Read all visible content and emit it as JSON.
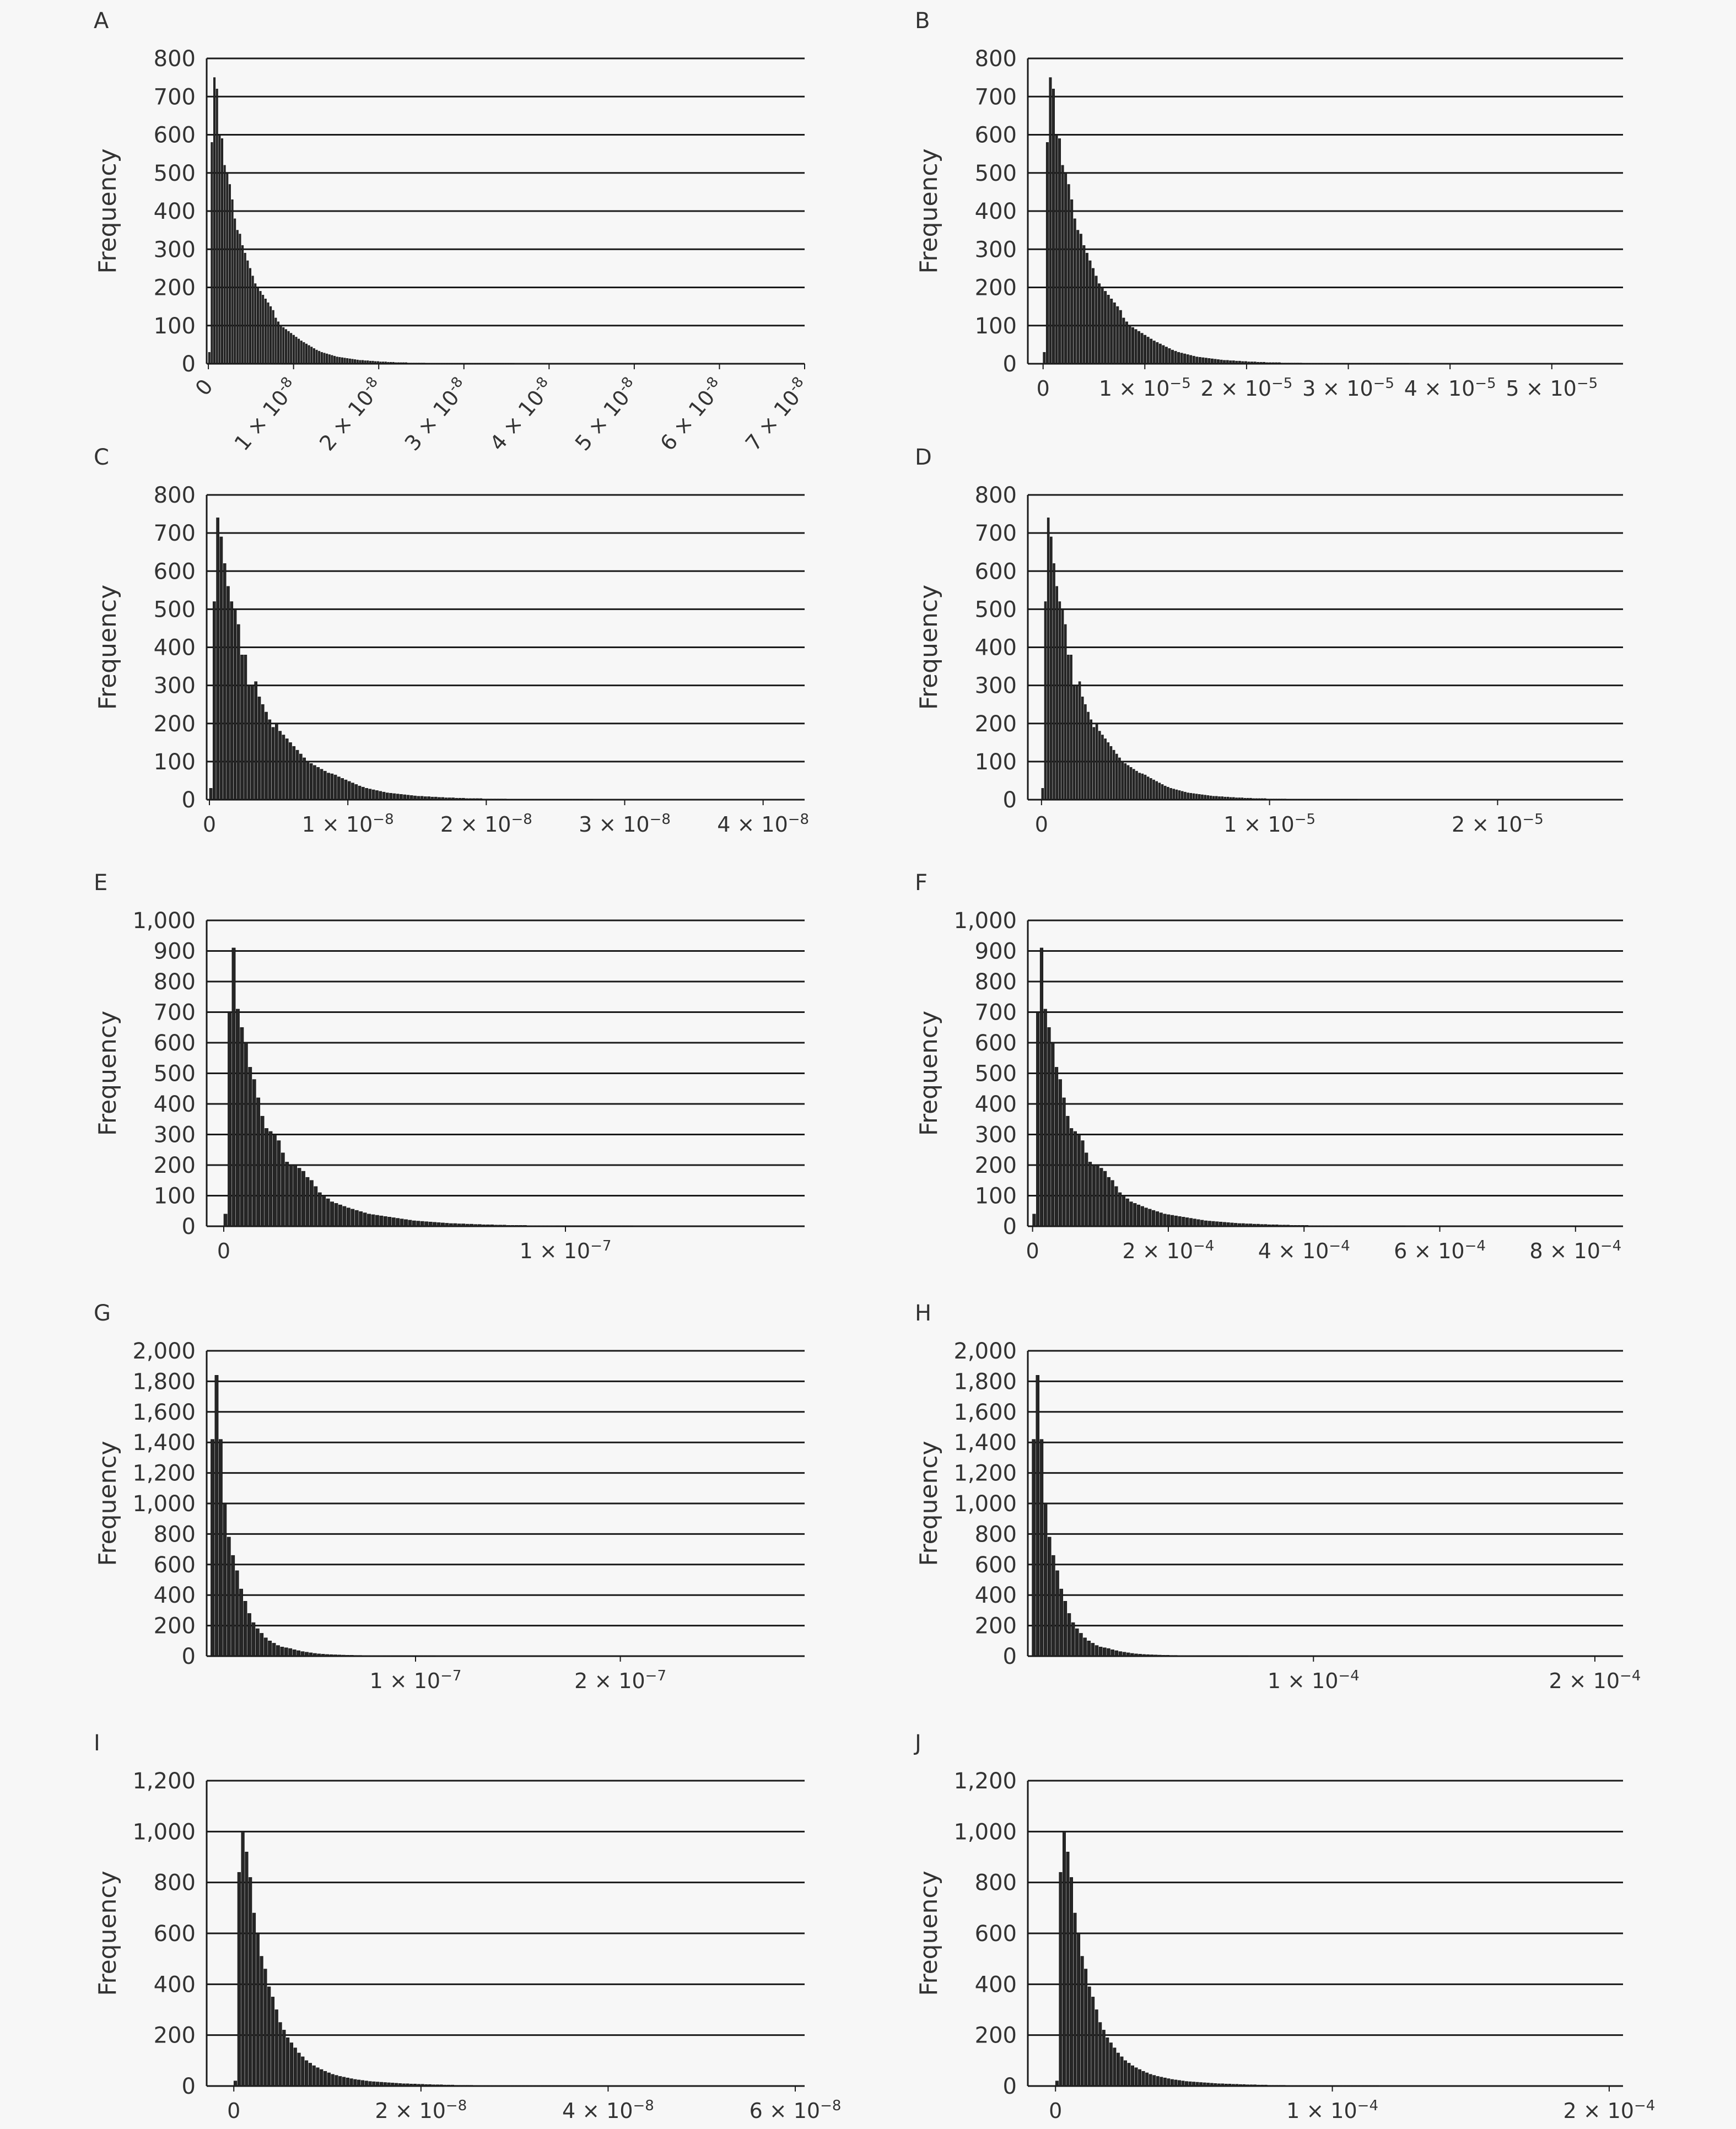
{
  "chart_data": [
    {
      "panel": "A",
      "type": "bar",
      "ylabel": "Frequency",
      "ylim": [
        0,
        800
      ],
      "yticks": [
        "0",
        "100",
        "200",
        "300",
        "400",
        "500",
        "600",
        "700",
        "800"
      ],
      "xlim": [
        -2e-10,
        7e-08
      ],
      "xlabels_rotated": true,
      "xticks": [
        {
          "value": 0,
          "mantissa": "0",
          "exp": ""
        },
        {
          "value": 1e-08,
          "mantissa": "1 × 10",
          "exp": "-8"
        },
        {
          "value": 2e-08,
          "mantissa": "2 × 10",
          "exp": "-8"
        },
        {
          "value": 3e-08,
          "mantissa": "3 × 10",
          "exp": "-8"
        },
        {
          "value": 4e-08,
          "mantissa": "4 × 10",
          "exp": "-8"
        },
        {
          "value": 5e-08,
          "mantissa": "5 × 10",
          "exp": "-8"
        },
        {
          "value": 6e-08,
          "mantissa": "6 × 10",
          "exp": "-8"
        },
        {
          "value": 7e-08,
          "mantissa": "7 × 10",
          "exp": "-8"
        }
      ],
      "bin_width": 3e-10,
      "frequencies": [
        30,
        580,
        750,
        720,
        600,
        590,
        520,
        500,
        470,
        430,
        380,
        350,
        340,
        310,
        290,
        270,
        250,
        230,
        210,
        200,
        190,
        180,
        170,
        160,
        150,
        140,
        120,
        110,
        100,
        95,
        90,
        85,
        80,
        75,
        70,
        65,
        60,
        56,
        52,
        48,
        44,
        40,
        36,
        33,
        30,
        28,
        26,
        24,
        22,
        20,
        18,
        17,
        16,
        15,
        14,
        13,
        12,
        11,
        10,
        9,
        9,
        8,
        8,
        7,
        7,
        6,
        6,
        5,
        5,
        5,
        4,
        4,
        4,
        3,
        3,
        3,
        3,
        3,
        2,
        2,
        2,
        2,
        2,
        2,
        2,
        1,
        1,
        1,
        1,
        1,
        1,
        1,
        1,
        1,
        1,
        1,
        1,
        1,
        1,
        1,
        1,
        1,
        1,
        1,
        1,
        1,
        1,
        1,
        1,
        1,
        1,
        1,
        1,
        1,
        1,
        1,
        1,
        1,
        1,
        1
      ]
    },
    {
      "panel": "B",
      "type": "bar",
      "ylabel": "Frequency",
      "ylim": [
        0,
        800
      ],
      "yticks": [
        "0",
        "100",
        "200",
        "300",
        "400",
        "500",
        "600",
        "700",
        "800"
      ],
      "xlim": [
        -1.5e-06,
        5.7e-05
      ],
      "xlabels_rotated": false,
      "xticks": [
        {
          "value": 0,
          "mantissa": "0",
          "exp": ""
        },
        {
          "value": 1e-05,
          "mantissa": "1 × 10",
          "exp": "−5"
        },
        {
          "value": 2e-05,
          "mantissa": "2 × 10",
          "exp": "−5"
        },
        {
          "value": 3e-05,
          "mantissa": "3 × 10",
          "exp": "−5"
        },
        {
          "value": 4e-05,
          "mantissa": "4 × 10",
          "exp": "−5"
        },
        {
          "value": 5e-05,
          "mantissa": "5 × 10",
          "exp": "−5"
        }
      ],
      "bin_width": 3e-07,
      "frequencies": [
        30,
        580,
        750,
        720,
        600,
        590,
        520,
        500,
        470,
        430,
        380,
        350,
        340,
        310,
        290,
        270,
        250,
        230,
        210,
        200,
        190,
        180,
        170,
        160,
        150,
        140,
        120,
        110,
        100,
        95,
        90,
        85,
        80,
        75,
        70,
        65,
        60,
        56,
        52,
        48,
        44,
        40,
        36,
        33,
        30,
        28,
        26,
        24,
        22,
        20,
        18,
        17,
        16,
        15,
        14,
        13,
        12,
        11,
        10,
        9,
        9,
        8,
        8,
        7,
        7,
        6,
        6,
        5,
        5,
        5,
        4,
        4,
        4,
        3,
        3,
        3,
        3,
        3,
        2,
        2,
        2,
        2,
        2,
        2,
        2,
        1,
        1,
        1,
        1,
        1,
        1,
        1,
        1,
        1,
        1,
        1,
        1,
        1,
        1,
        1,
        1,
        1,
        1,
        1,
        1,
        1,
        1,
        1,
        1,
        1,
        1,
        1,
        1,
        1,
        1,
        1,
        1,
        1,
        1,
        1
      ]
    },
    {
      "panel": "C",
      "type": "bar",
      "ylabel": "Frequency",
      "ylim": [
        0,
        800
      ],
      "yticks": [
        "0",
        "100",
        "200",
        "300",
        "400",
        "500",
        "600",
        "700",
        "800"
      ],
      "xlim": [
        -2e-10,
        4.3e-08
      ],
      "xlabels_rotated": false,
      "xticks": [
        {
          "value": 0,
          "mantissa": "0",
          "exp": ""
        },
        {
          "value": 1e-08,
          "mantissa": "1 × 10",
          "exp": "−8"
        },
        {
          "value": 2e-08,
          "mantissa": "2 × 10",
          "exp": "−8"
        },
        {
          "value": 3e-08,
          "mantissa": "3 × 10",
          "exp": "−8"
        },
        {
          "value": 4e-08,
          "mantissa": "4 × 10",
          "exp": "−8"
        }
      ],
      "bin_width": 2.5e-10,
      "frequencies": [
        30,
        520,
        740,
        690,
        620,
        560,
        520,
        500,
        460,
        380,
        380,
        300,
        300,
        310,
        270,
        250,
        230,
        210,
        190,
        200,
        180,
        170,
        160,
        150,
        140,
        130,
        120,
        110,
        100,
        95,
        90,
        85,
        80,
        75,
        70,
        68,
        65,
        60,
        56,
        52,
        48,
        44,
        40,
        36,
        33,
        30,
        28,
        26,
        24,
        22,
        20,
        18,
        17,
        16,
        15,
        14,
        13,
        12,
        11,
        10,
        9,
        9,
        8,
        8,
        7,
        7,
        6,
        6,
        5,
        5,
        5,
        4,
        4,
        4,
        3,
        3,
        3,
        3,
        3,
        2,
        2,
        2,
        2,
        2,
        2,
        2,
        1,
        1,
        1,
        1,
        1,
        1,
        1,
        1,
        1,
        1,
        1,
        1,
        1,
        1,
        1,
        1,
        1,
        1,
        1,
        1,
        1,
        1,
        1,
        1,
        1
      ]
    },
    {
      "panel": "D",
      "type": "bar",
      "ylabel": "Frequency",
      "ylim": [
        0,
        800
      ],
      "yticks": [
        "0",
        "100",
        "200",
        "300",
        "400",
        "500",
        "600",
        "700",
        "800"
      ],
      "xlim": [
        -6e-07,
        2.55e-05
      ],
      "xlabels_rotated": false,
      "xticks": [
        {
          "value": 0,
          "mantissa": "0",
          "exp": ""
        },
        {
          "value": 1e-05,
          "mantissa": "1 × 10",
          "exp": "−5"
        },
        {
          "value": 2e-05,
          "mantissa": "2 × 10",
          "exp": "−5"
        }
      ],
      "bin_width": 1.25e-07,
      "frequencies": [
        30,
        520,
        740,
        690,
        620,
        560,
        520,
        500,
        460,
        380,
        380,
        300,
        300,
        310,
        270,
        250,
        230,
        210,
        190,
        200,
        180,
        170,
        160,
        150,
        140,
        130,
        120,
        110,
        100,
        95,
        90,
        85,
        80,
        75,
        70,
        68,
        65,
        60,
        56,
        52,
        48,
        44,
        40,
        36,
        33,
        30,
        28,
        26,
        24,
        22,
        20,
        18,
        17,
        16,
        15,
        14,
        13,
        12,
        11,
        10,
        9,
        9,
        8,
        8,
        7,
        7,
        6,
        6,
        5,
        5,
        5,
        4,
        4,
        4,
        3,
        3,
        3,
        3,
        3,
        2,
        2,
        2,
        2,
        2,
        2,
        2,
        1,
        1,
        1,
        1,
        1,
        1,
        1,
        1,
        1,
        1,
        1,
        1,
        1,
        1,
        1,
        1,
        1,
        1,
        1,
        1,
        1,
        1,
        1,
        1,
        1
      ]
    },
    {
      "panel": "E",
      "type": "bar",
      "ylabel": "Frequency",
      "ylim": [
        0,
        1000
      ],
      "yticks": [
        "0",
        "100",
        "200",
        "300",
        "400",
        "500",
        "600",
        "700",
        "800",
        "900",
        "1,000"
      ],
      "xlim": [
        -5e-09,
        1.7e-07
      ],
      "xlabels_rotated": false,
      "xticks": [
        {
          "value": 0,
          "mantissa": "0",
          "exp": ""
        },
        {
          "value": 1e-07,
          "mantissa": "1 × 10",
          "exp": "−7"
        }
      ],
      "bin_width": 1.2e-09,
      "frequencies": [
        40,
        700,
        910,
        710,
        650,
        600,
        520,
        480,
        420,
        360,
        320,
        310,
        300,
        280,
        240,
        210,
        200,
        200,
        190,
        180,
        160,
        150,
        130,
        110,
        100,
        90,
        80,
        75,
        70,
        65,
        60,
        56,
        52,
        48,
        44,
        40,
        38,
        36,
        34,
        32,
        30,
        28,
        26,
        24,
        22,
        20,
        18,
        17,
        16,
        15,
        14,
        13,
        12,
        11,
        10,
        9,
        9,
        8,
        8,
        7,
        7,
        6,
        6,
        5,
        5,
        5,
        4,
        4,
        4,
        3,
        3,
        3,
        3,
        3,
        2,
        2,
        2,
        2,
        2,
        2,
        2,
        1,
        1,
        1,
        1,
        1,
        1,
        1,
        1,
        1,
        1,
        1,
        1,
        1,
        1,
        1,
        1,
        1,
        1,
        1
      ]
    },
    {
      "panel": "F",
      "type": "bar",
      "ylabel": "Frequency",
      "ylim": [
        0,
        1000
      ],
      "yticks": [
        "0",
        "100",
        "200",
        "300",
        "400",
        "500",
        "600",
        "700",
        "800",
        "900",
        "1,000"
      ],
      "xlim": [
        -7e-06,
        0.00087
      ],
      "xlabels_rotated": false,
      "xticks": [
        {
          "value": 0,
          "mantissa": "0",
          "exp": ""
        },
        {
          "value": 0.0002,
          "mantissa": "2 × 10",
          "exp": "−4"
        },
        {
          "value": 0.0004,
          "mantissa": "4 × 10",
          "exp": "−4"
        },
        {
          "value": 0.0006,
          "mantissa": "6 × 10",
          "exp": "−4"
        },
        {
          "value": 0.0008,
          "mantissa": "8 × 10",
          "exp": "−4"
        }
      ],
      "bin_width": 5.5e-06,
      "frequencies": [
        40,
        700,
        910,
        710,
        650,
        600,
        520,
        480,
        420,
        360,
        320,
        310,
        300,
        280,
        240,
        210,
        200,
        200,
        190,
        180,
        160,
        150,
        130,
        110,
        100,
        90,
        80,
        75,
        70,
        65,
        60,
        56,
        52,
        48,
        44,
        40,
        38,
        36,
        34,
        32,
        30,
        28,
        26,
        24,
        22,
        20,
        18,
        17,
        16,
        15,
        14,
        13,
        12,
        11,
        10,
        9,
        9,
        8,
        8,
        7,
        7,
        6,
        6,
        5,
        5,
        5,
        4,
        4,
        4,
        3,
        3,
        3,
        3,
        3,
        2,
        2,
        2,
        2,
        2,
        2,
        2,
        1,
        1,
        1,
        1,
        1,
        1,
        1,
        1,
        1,
        1,
        1,
        1,
        1,
        1,
        1,
        1,
        1,
        1,
        1
      ]
    },
    {
      "panel": "G",
      "type": "bar",
      "ylabel": "Frequency",
      "ylim": [
        0,
        2000
      ],
      "yticks": [
        "0",
        "200",
        "400",
        "600",
        "800",
        "1,000",
        "1,200",
        "1,400",
        "1,600",
        "1,800",
        "2,000"
      ],
      "xlim": [
        -2e-09,
        2.9e-07
      ],
      "xlabels_rotated": false,
      "xticks": [
        {
          "value": 1e-07,
          "mantissa": "1 × 10",
          "exp": "−7"
        },
        {
          "value": 2e-07,
          "mantissa": "2 × 10",
          "exp": "−7"
        }
      ],
      "bin_width": 2e-09,
      "frequencies": [
        1420,
        1840,
        1420,
        1000,
        780,
        660,
        560,
        440,
        360,
        280,
        220,
        180,
        150,
        120,
        100,
        85,
        70,
        60,
        55,
        50,
        42,
        36,
        30,
        26,
        22,
        18,
        15,
        13,
        11,
        10,
        9,
        8,
        7,
        6,
        6,
        5,
        5,
        4,
        4,
        3,
        3,
        3,
        2,
        2,
        2,
        2,
        2,
        1,
        1,
        1,
        1,
        1,
        1,
        1,
        1
      ]
    },
    {
      "panel": "H",
      "type": "bar",
      "ylabel": "Frequency",
      "ylim": [
        0,
        2000
      ],
      "yticks": [
        "0",
        "200",
        "400",
        "600",
        "800",
        "1,000",
        "1,200",
        "1,400",
        "1,600",
        "1,800",
        "2,000"
      ],
      "xlim": [
        -1.5e-06,
        0.00021
      ],
      "xlabels_rotated": false,
      "xticks": [
        {
          "value": 0.0001,
          "mantissa": "1 × 10",
          "exp": "−4"
        },
        {
          "value": 0.0002,
          "mantissa": "2 × 10",
          "exp": "−4"
        }
      ],
      "bin_width": 1.4e-06,
      "frequencies": [
        1420,
        1840,
        1420,
        1000,
        780,
        660,
        560,
        440,
        360,
        280,
        220,
        180,
        150,
        120,
        100,
        85,
        70,
        60,
        55,
        50,
        42,
        36,
        30,
        26,
        22,
        18,
        15,
        13,
        11,
        10,
        9,
        8,
        7,
        6,
        6,
        5,
        5,
        4,
        4,
        3,
        3,
        3,
        2,
        2,
        2,
        2,
        2,
        1,
        1,
        1,
        1,
        1,
        1,
        1,
        1
      ]
    },
    {
      "panel": "I",
      "type": "bar",
      "ylabel": "Frequency",
      "ylim": [
        0,
        1200
      ],
      "yticks": [
        "0",
        "200",
        "400",
        "600",
        "800",
        "1,000",
        "1,200"
      ],
      "xlim": [
        -2.9e-09,
        6.1e-08
      ],
      "xlabels_rotated": false,
      "xticks": [
        {
          "value": 0,
          "mantissa": "0",
          "exp": ""
        },
        {
          "value": 2e-08,
          "mantissa": "2 × 10",
          "exp": "−8"
        },
        {
          "value": 4e-08,
          "mantissa": "4 × 10",
          "exp": "−8"
        },
        {
          "value": 6e-08,
          "mantissa": "6 × 10",
          "exp": "−8"
        }
      ],
      "bin_width": 4e-10,
      "frequencies": [
        20,
        840,
        1000,
        920,
        820,
        680,
        600,
        510,
        460,
        390,
        350,
        300,
        250,
        220,
        190,
        170,
        150,
        130,
        115,
        100,
        90,
        80,
        72,
        65,
        58,
        52,
        46,
        42,
        38,
        35,
        32,
        29,
        26,
        24,
        22,
        20,
        18,
        17,
        16,
        15,
        14,
        13,
        12,
        11,
        10,
        9,
        9,
        8,
        8,
        7,
        7,
        6,
        6,
        5,
        5,
        5,
        4,
        4,
        4,
        3,
        3,
        3,
        3,
        3,
        2,
        2,
        2,
        2,
        2,
        2,
        2,
        1,
        1,
        1,
        1,
        1,
        1,
        1,
        1,
        1,
        1,
        1,
        1,
        1,
        1,
        1,
        1,
        1,
        1,
        1
      ]
    },
    {
      "panel": "J",
      "type": "bar",
      "ylabel": "Frequency",
      "ylim": [
        0,
        1200
      ],
      "yticks": [
        "0",
        "200",
        "400",
        "600",
        "800",
        "1,000",
        "1,200"
      ],
      "xlim": [
        -1e-05,
        0.000205
      ],
      "xlabels_rotated": false,
      "xticks": [
        {
          "value": 0,
          "mantissa": "0",
          "exp": ""
        },
        {
          "value": 0.0001,
          "mantissa": "1 × 10",
          "exp": "−4"
        },
        {
          "value": 0.0002,
          "mantissa": "2 × 10",
          "exp": "−4"
        }
      ],
      "bin_width": 1.3e-06,
      "frequencies": [
        20,
        840,
        1000,
        920,
        820,
        680,
        600,
        510,
        460,
        390,
        350,
        300,
        250,
        220,
        190,
        170,
        150,
        130,
        115,
        100,
        90,
        80,
        72,
        65,
        58,
        52,
        46,
        42,
        38,
        35,
        32,
        29,
        26,
        24,
        22,
        20,
        18,
        17,
        16,
        15,
        14,
        13,
        12,
        11,
        10,
        9,
        9,
        8,
        8,
        7,
        7,
        6,
        6,
        5,
        5,
        5,
        4,
        4,
        4,
        3,
        3,
        3,
        3,
        3,
        2,
        2,
        2,
        2,
        2,
        2,
        2,
        1,
        1,
        1,
        1,
        1,
        1,
        1,
        1,
        1,
        1,
        1,
        1,
        1,
        1,
        1,
        1,
        1,
        1,
        1
      ]
    }
  ]
}
